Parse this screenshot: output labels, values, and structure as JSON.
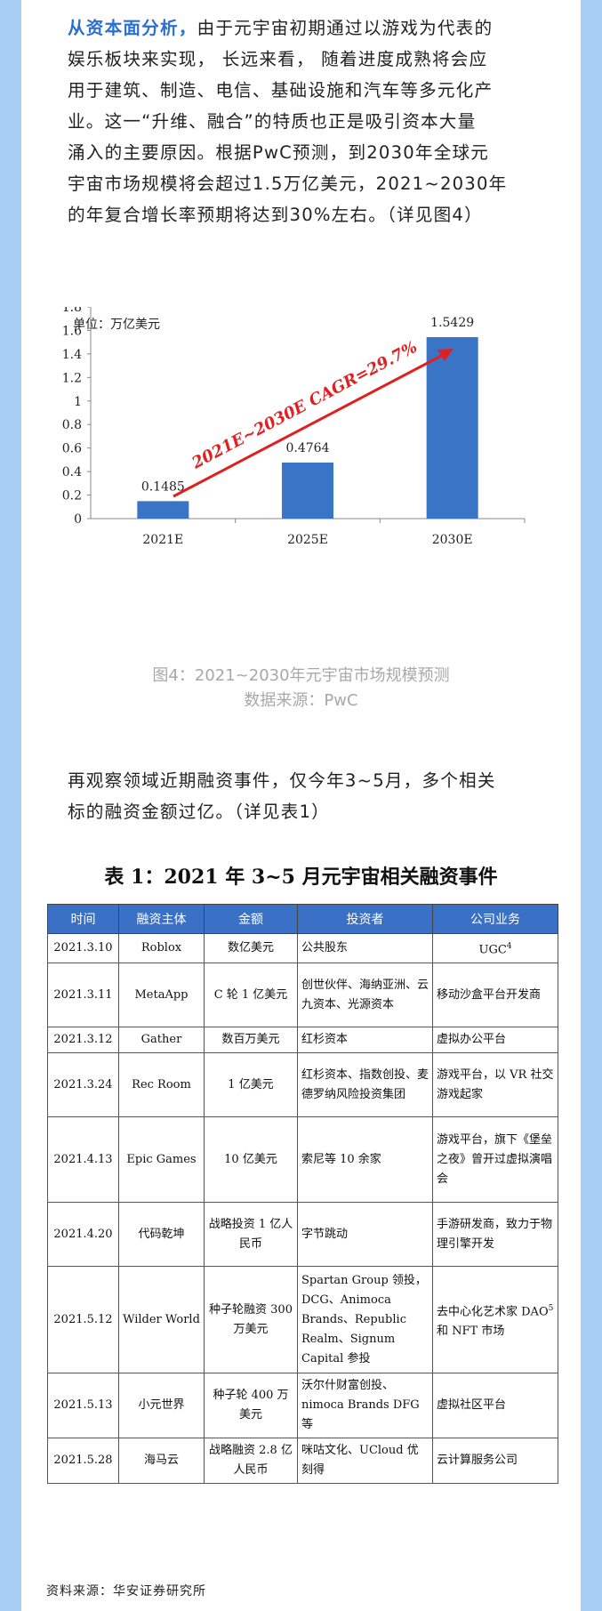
{
  "intro": {
    "highlight": "从资本面分析，",
    "lines": [
      "由于元宇宙初期通过以游戏为代表的",
      "娱乐板块来实现，  长远来看，  随着进度成熟将会应",
      "用于建筑、制造、电信、基础设施和汽车等多元化产",
      "业。这一“升维、融合”的特质也正是吸引资本大量",
      "涌入的主要原因。根据PwC预测，到2030年全球元",
      "宇宙市场规模将会超过1.5万亿美元，2021~2030年",
      "的年复合增长率预期将达到30%左右。（详见图4）"
    ]
  },
  "chart_data": {
    "type": "bar",
    "unit_label": "单位：万亿美元",
    "categories": [
      "2021E",
      "2025E",
      "2030E"
    ],
    "values": [
      0.1485,
      0.4764,
      1.5429
    ],
    "value_labels": [
      "0.1485",
      "0.4764",
      "1.5429"
    ],
    "ylim": [
      0,
      1.8
    ],
    "yticks": [
      "0",
      "0.2",
      "0.4",
      "0.6",
      "0.8",
      "1",
      "1.2",
      "1.4",
      "1.6",
      "1.8"
    ],
    "annotation": "2021E~2030E CAGR=29.7%",
    "bar_color": "#3a74c6",
    "annotation_color": "#e02020",
    "grid": false
  },
  "figure": {
    "caption": "图4：2021~2030年元宇宙市场规模预测",
    "source": "数据来源：PwC"
  },
  "para2": {
    "lines": [
      "再观察领域近期融资事件，仅今年3~5月，多个相关",
      "标的融资金额过亿。（详见表1）"
    ]
  },
  "table": {
    "title": "表 1：2021 年 3~5 月元宇宙相关融资事件",
    "headers": [
      "时间",
      "融资主体",
      "金额",
      "投资者",
      "公司业务"
    ],
    "rows": [
      {
        "date": "2021.3.10",
        "entity": "Roblox",
        "amount": "数亿美元",
        "investors": "公共股东",
        "business": "UGC",
        "business_sup": "4"
      },
      {
        "date": "2021.3.11",
        "entity": "MetaApp",
        "amount": "C 轮 1 亿美元",
        "investors": "创世伙伴、海纳亚洲、云九资本、光源资本",
        "business": "移动沙盒平台开发商",
        "business_sup": ""
      },
      {
        "date": "2021.3.12",
        "entity": "Gather",
        "amount": "数百万美元",
        "investors": "红杉资本",
        "business": "虚拟办公平台",
        "business_sup": ""
      },
      {
        "date": "2021.3.24",
        "entity": "Rec Room",
        "amount": "1 亿美元",
        "investors": "红杉资本、指数创投、麦德罗纳风险投资集团",
        "business": "游戏平台，以 VR 社交游戏起家",
        "business_sup": ""
      },
      {
        "date": "2021.4.13",
        "entity": "Epic Games",
        "amount": "10 亿美元",
        "investors": "索尼等 10 余家",
        "business": "游戏平台，旗下《堡垒之夜》曾开过虚拟演唱会",
        "business_sup": ""
      },
      {
        "date": "2021.4.20",
        "entity": "代码乾坤",
        "amount": "战略投资 1 亿人民币",
        "investors": "字节跳动",
        "business": "手游研发商，致力于物理引擎开发",
        "business_sup": ""
      },
      {
        "date": "2021.5.12",
        "entity": "Wilder World",
        "amount": "种子轮融资 300 万美元",
        "investors": "Spartan Group 领投，DCG、Animoca Brands、Republic Realm、Signum Capital 参投",
        "business": "去中心化艺术家 DAO",
        "business_sup": "5",
        "business_tail": "和 NFT 市场"
      },
      {
        "date": "2021.5.13",
        "entity": "小元世界",
        "amount": "种子轮 400 万美元",
        "investors": "沃尔什财富创投、nimoca Brands DFG 等",
        "business": "虚拟社区平台",
        "business_sup": ""
      },
      {
        "date": "2021.5.28",
        "entity": "海马云",
        "amount": "战略融资 2.8 亿人民币",
        "investors": "咪咕文化、UCloud 优刻得",
        "business": "云计算服务公司",
        "business_sup": ""
      }
    ]
  },
  "footer": {
    "source": "资料来源：华安证券研究所"
  }
}
